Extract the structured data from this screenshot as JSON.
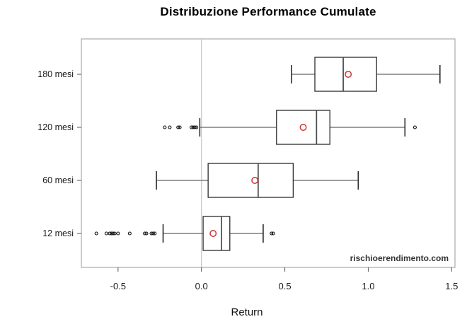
{
  "chart_data": {
    "type": "boxplot",
    "orientation": "horizontal",
    "title": "Distribuzione Performance Cumulate",
    "xlabel": "Return",
    "watermark": "rischioerendimento.com",
    "xlim": [
      -0.72,
      1.52
    ],
    "x_ticks": [
      -0.5,
      0.0,
      0.5,
      1.0,
      1.5
    ],
    "x_tick_labels": [
      "-0.5",
      "0.0",
      "0.5",
      "1.0",
      "1.5"
    ],
    "reference_line_x": 0.0,
    "grid": false,
    "legend": "none",
    "categories": [
      "180 mesi",
      "120 mesi",
      "60 mesi",
      "12 mesi"
    ],
    "series": [
      {
        "name": "180 mesi",
        "whisker_low": 0.54,
        "q1": 0.68,
        "median": 0.85,
        "q3": 1.05,
        "whisker_high": 1.43,
        "mean": 0.88,
        "outliers": []
      },
      {
        "name": "120 mesi",
        "whisker_low": -0.01,
        "q1": 0.45,
        "median": 0.69,
        "q3": 0.77,
        "whisker_high": 1.22,
        "mean": 0.61,
        "outliers": [
          -0.22,
          -0.19,
          -0.14,
          -0.13,
          -0.06,
          -0.05,
          -0.04,
          -0.03,
          1.28
        ]
      },
      {
        "name": "60 mesi",
        "whisker_low": -0.27,
        "q1": 0.04,
        "median": 0.34,
        "q3": 0.55,
        "whisker_high": 0.94,
        "mean": 0.32,
        "outliers": []
      },
      {
        "name": "12 mesi",
        "whisker_low": -0.23,
        "q1": 0.01,
        "median": 0.12,
        "q3": 0.17,
        "whisker_high": 0.37,
        "mean": 0.07,
        "outliers": [
          -0.63,
          -0.57,
          -0.55,
          -0.54,
          -0.53,
          -0.52,
          -0.5,
          -0.43,
          -0.34,
          -0.33,
          -0.3,
          -0.29,
          -0.28,
          0.42,
          0.43
        ]
      }
    ],
    "colors": {
      "frame": "#9a9a9a",
      "zero_line": "#c8c8c8",
      "whisker_line": "#7f7f7f",
      "whisker_cap": "#2b2b2b",
      "box_stroke": "#2b2b2b",
      "box_fill": "#ffffff",
      "median_line": "#4a4a4a",
      "mean_marker": "#cc3333",
      "outlier_marker": "#111111",
      "tick_text": "#1a1a1a",
      "title_text": "#000000"
    }
  }
}
